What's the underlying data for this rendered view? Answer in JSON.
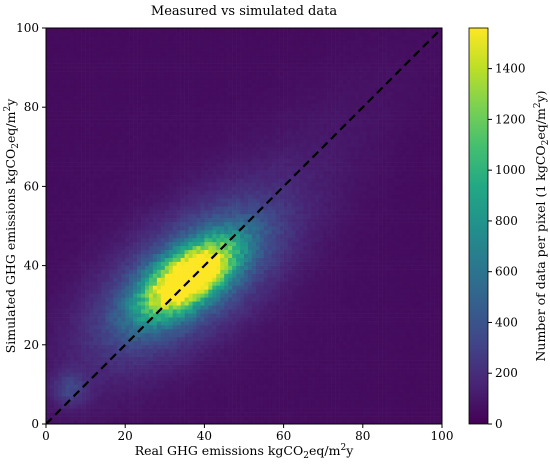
{
  "chart_data": {
    "type": "heatmap",
    "title": "Measured vs simulated data",
    "xlabel": "Real GHG emissions kgCO",
    "xlabel_sub": "2",
    "xlabel_rest": "eq/m",
    "xlabel_sup": "2",
    "xlabel_end": "y",
    "ylabel": "Simulated GHG emissions kgCO",
    "ylabel_sub": "2",
    "ylabel_rest": "eq/m",
    "ylabel_sup": "2",
    "ylabel_end": "y",
    "colorbar_label": "Number of data per pixel (1 kgCO",
    "colorbar_label_sub": "2",
    "colorbar_label_rest": "eq/m",
    "colorbar_label_sup": "2",
    "colorbar_label_end": "y)",
    "xlim": [
      0,
      100
    ],
    "ylim": [
      0,
      100
    ],
    "x_ticks": [
      "0",
      "20",
      "40",
      "60",
      "80",
      "100"
    ],
    "y_ticks": [
      "0",
      "20",
      "40",
      "60",
      "80",
      "100"
    ],
    "colorbar_range": [
      0,
      1560
    ],
    "colorbar_ticks": [
      "0",
      "200",
      "400",
      "600",
      "800",
      "1000",
      "1200",
      "1400"
    ],
    "colormap": "viridis",
    "reference_line": {
      "style": "dashed",
      "color": "#000000",
      "from": [
        0,
        0
      ],
      "to": [
        100,
        100
      ]
    },
    "density_peak": {
      "x": 36,
      "y": 37,
      "max_count": 1560
    },
    "secondary_cluster": {
      "x": 6,
      "y": 9,
      "count": 230
    }
  }
}
